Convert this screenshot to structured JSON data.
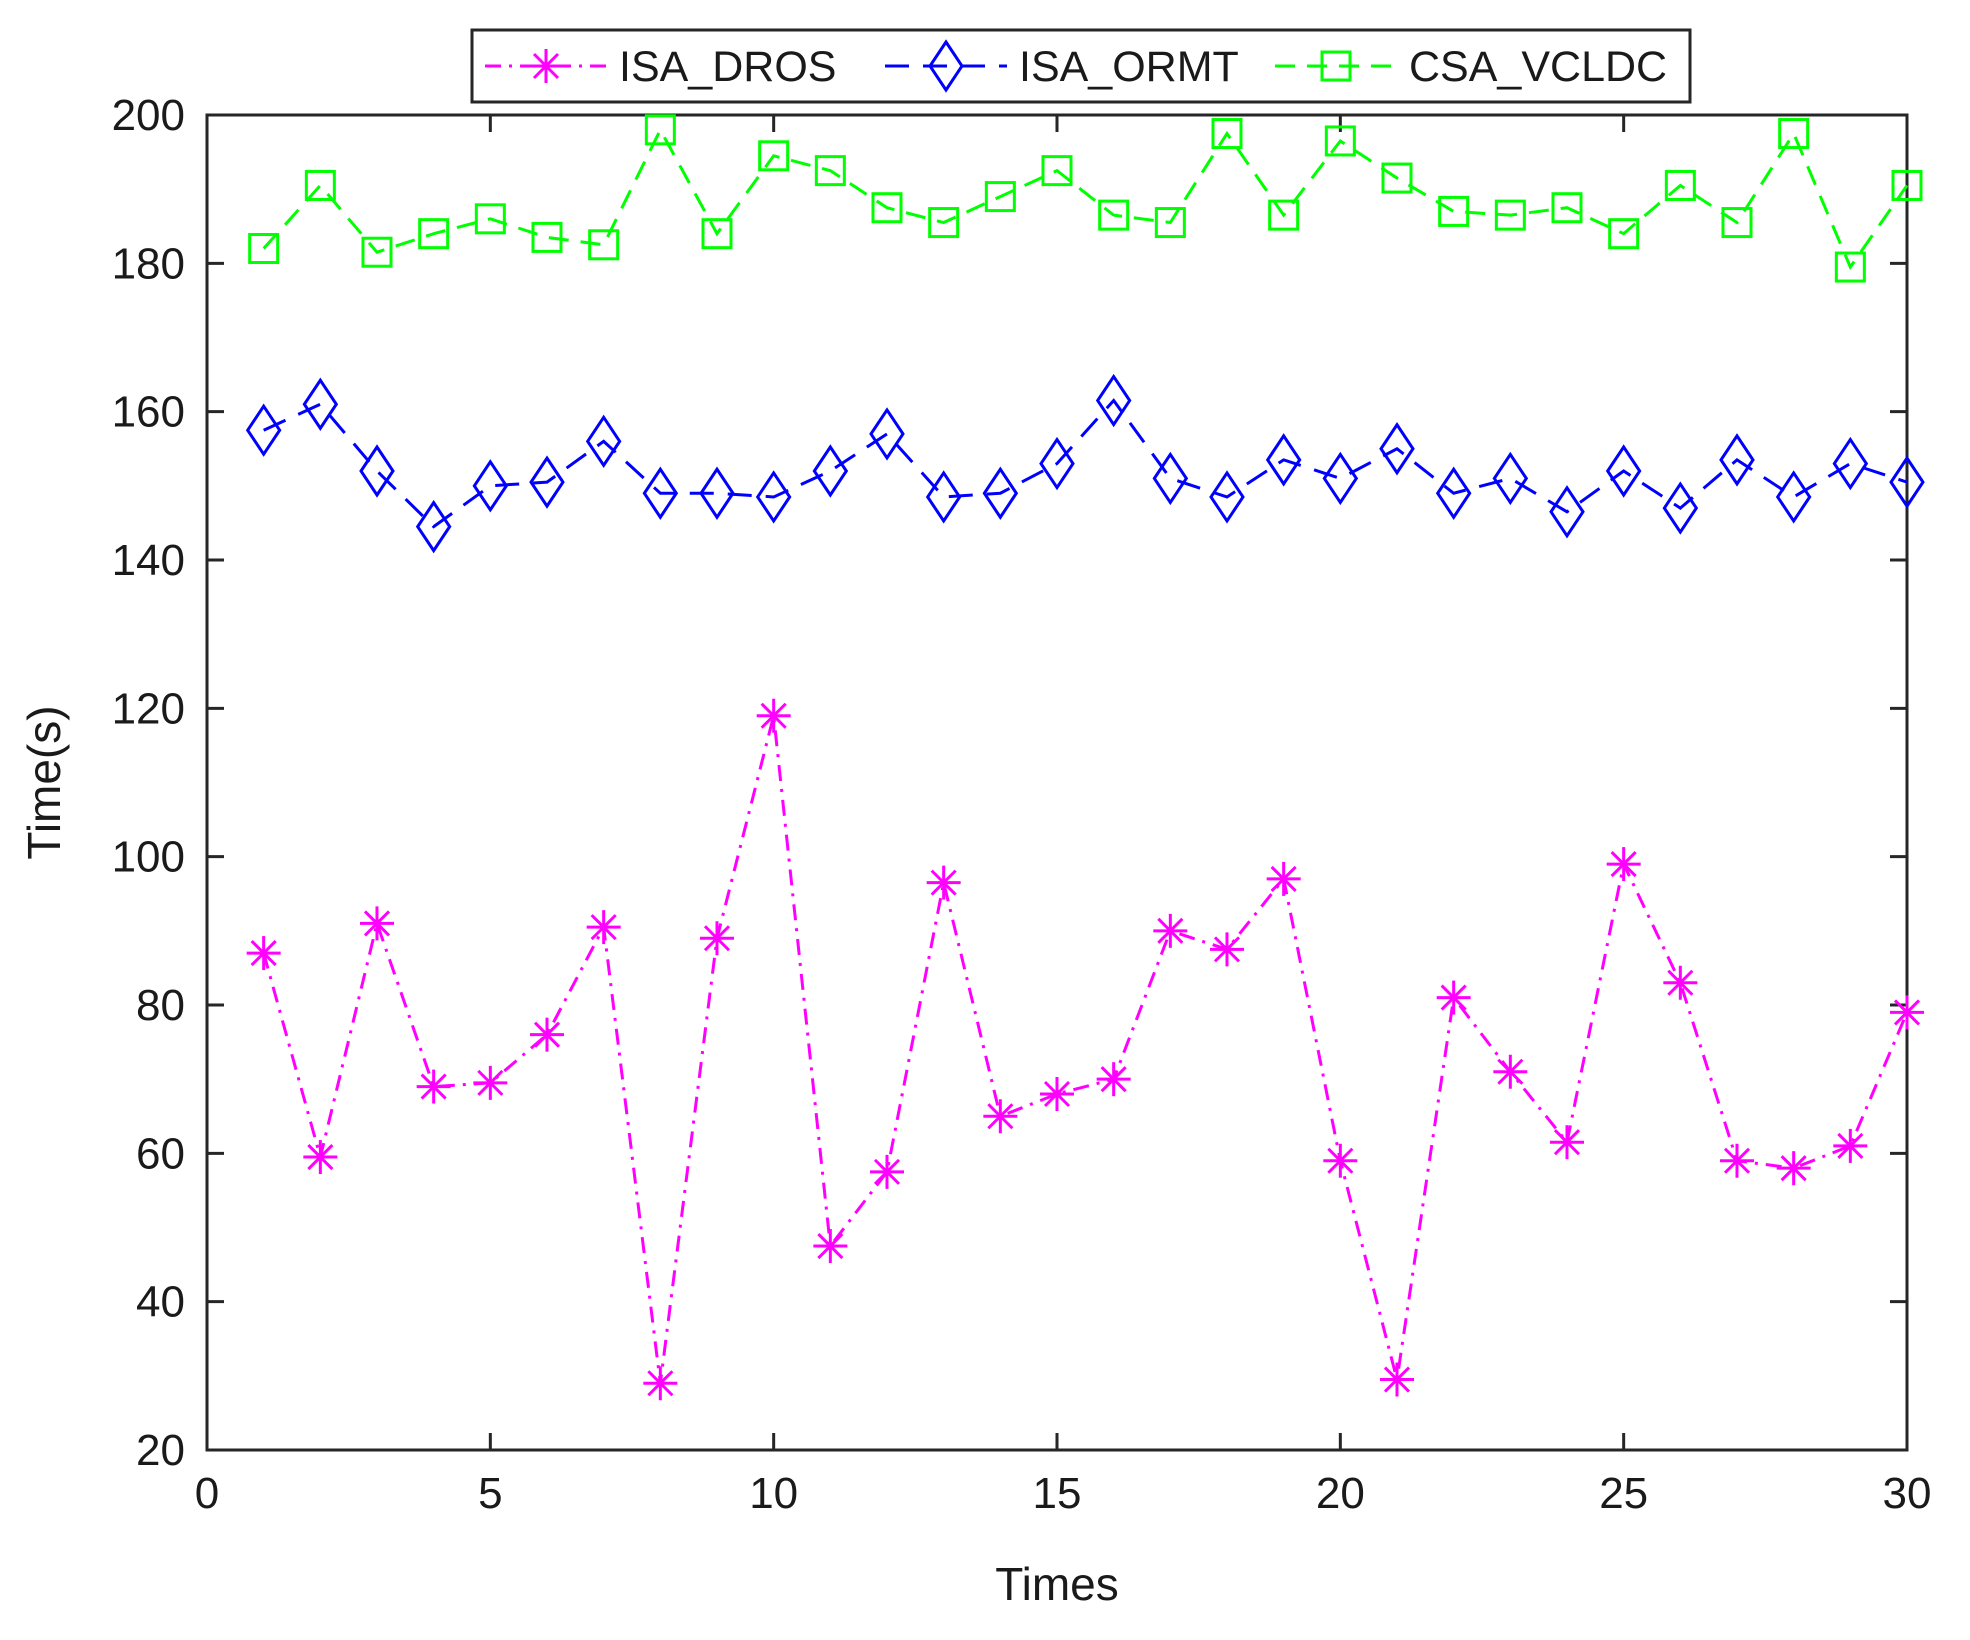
{
  "chart_data": {
    "type": "line",
    "title": "",
    "xlabel": "Times",
    "ylabel": "Time(s)",
    "xlim": [
      0,
      30
    ],
    "ylim": [
      20,
      200
    ],
    "xticks": [
      0,
      5,
      10,
      15,
      20,
      25,
      30
    ],
    "yticks": [
      20,
      40,
      60,
      80,
      100,
      120,
      140,
      160,
      180,
      200
    ],
    "grid": false,
    "legend_position": "top-center",
    "x": [
      1,
      2,
      3,
      4,
      5,
      6,
      7,
      8,
      9,
      10,
      11,
      12,
      13,
      14,
      15,
      16,
      17,
      18,
      19,
      20,
      21,
      22,
      23,
      24,
      25,
      26,
      27,
      28,
      29,
      30
    ],
    "series": [
      {
        "name": "ISA_DROS",
        "color": "#ff00ff",
        "line_style": "dash-dot",
        "marker": "asterisk",
        "values": [
          87,
          59.5,
          91,
          69,
          69.5,
          76,
          90.5,
          29,
          89,
          119,
          47.5,
          57.5,
          96.5,
          65,
          68,
          70,
          90,
          87.5,
          97,
          59,
          29.5,
          81,
          71,
          61.5,
          99,
          83,
          59,
          58,
          61,
          79
        ]
      },
      {
        "name": "ISA_ORMT",
        "color": "#0000ff",
        "line_style": "long-dash",
        "marker": "diamond",
        "values": [
          157.5,
          161,
          152,
          144.5,
          150,
          150.5,
          156,
          149,
          149,
          148.5,
          152,
          157,
          148.5,
          149,
          153,
          161.5,
          151,
          148.5,
          153.5,
          151,
          155,
          149,
          151,
          146.5,
          152,
          147,
          153.5,
          148.5,
          153,
          150.5
        ]
      },
      {
        "name": "CSA_VCLDC",
        "color": "#00ff00",
        "line_style": "dash",
        "marker": "square",
        "values": [
          182,
          190.5,
          181.5,
          184,
          186,
          183.5,
          182.5,
          198,
          184,
          194.5,
          192.5,
          187.5,
          185.5,
          189,
          192.5,
          186.5,
          185.5,
          197.5,
          186.5,
          196.5,
          191.5,
          187,
          186.5,
          187.5,
          184,
          190.5,
          185.5,
          197.5,
          179.5,
          190.5
        ]
      }
    ]
  }
}
